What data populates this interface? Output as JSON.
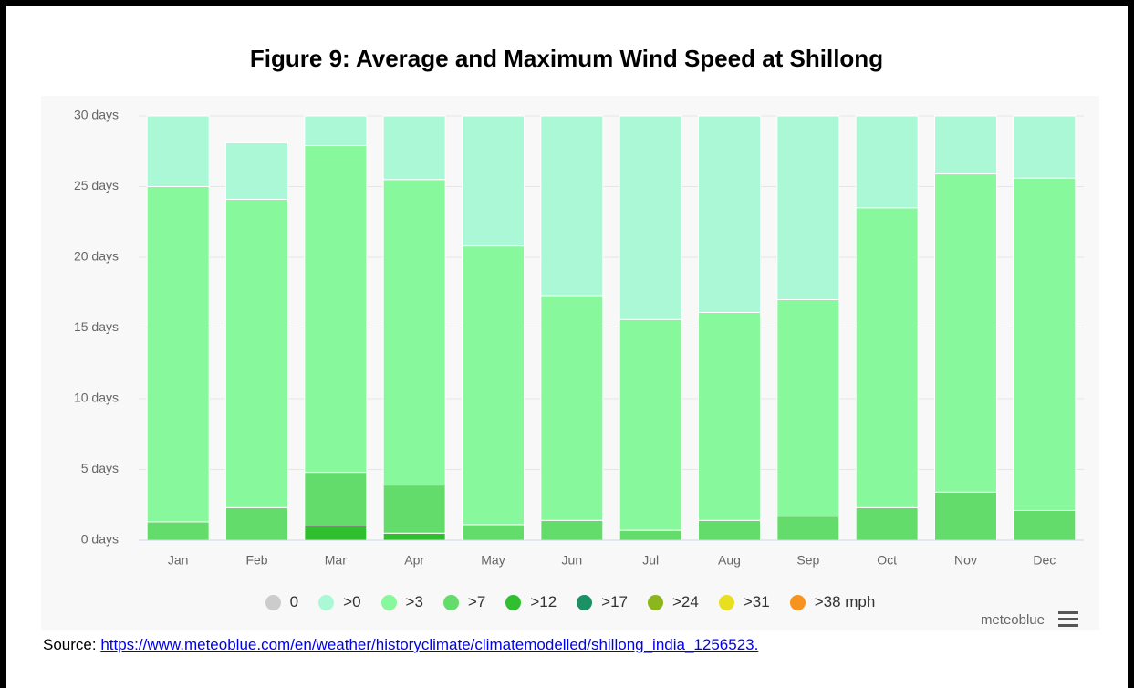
{
  "chart_data": {
    "type": "stacked_bar",
    "title": "Figure 9: Average and Maximum Wind Speed at Shillong",
    "categories": [
      "Jan",
      "Feb",
      "Mar",
      "Apr",
      "May",
      "Jun",
      "Jul",
      "Aug",
      "Sep",
      "Oct",
      "Nov",
      "Dec"
    ],
    "series": [
      {
        "name": "0",
        "color": "#cccccc",
        "values": [
          0,
          0,
          0,
          0,
          0,
          0,
          0,
          0,
          0,
          0,
          0,
          0
        ]
      },
      {
        "name": ">12",
        "color": "#2fbf2f",
        "values": [
          0,
          0,
          1.0,
          0.5,
          0,
          0,
          0,
          0,
          0,
          0,
          0,
          0
        ]
      },
      {
        "name": ">7",
        "color": "#64dc6c",
        "values": [
          1.3,
          2.3,
          3.8,
          3.4,
          1.1,
          1.4,
          0.7,
          1.4,
          1.7,
          2.3,
          3.4,
          2.1
        ]
      },
      {
        "name": ">3",
        "color": "#88f89c",
        "values": [
          23.7,
          21.8,
          23.1,
          21.6,
          19.7,
          15.9,
          14.9,
          14.7,
          15.3,
          21.2,
          22.5,
          23.5
        ]
      },
      {
        "name": ">0",
        "color": "#aaf8d6",
        "values": [
          5.0,
          4.0,
          2.1,
          4.5,
          9.2,
          12.7,
          14.4,
          13.9,
          13.0,
          6.5,
          4.1,
          4.4
        ]
      },
      {
        "name": ">17",
        "color": "#1a9263",
        "values": [
          0,
          0,
          0,
          0,
          0,
          0,
          0,
          0,
          0,
          0,
          0,
          0
        ]
      },
      {
        "name": ">24",
        "color": "#8db51c",
        "values": [
          0,
          0,
          0,
          0,
          0,
          0,
          0,
          0,
          0,
          0,
          0,
          0
        ]
      },
      {
        "name": ">31",
        "color": "#e8e01e",
        "values": [
          0,
          0,
          0,
          0,
          0,
          0,
          0,
          0,
          0,
          0,
          0,
          0
        ]
      },
      {
        "name": ">38 mph",
        "color": "#f7941d",
        "values": [
          0,
          0,
          0,
          0,
          0,
          0,
          0,
          0,
          0,
          0,
          0,
          0
        ]
      }
    ],
    "legend_order": [
      0,
      4,
      3,
      2,
      1,
      5,
      6,
      7,
      8
    ],
    "ylim": [
      0,
      30
    ],
    "yticks": [
      {
        "value": 0,
        "label": "0 days"
      },
      {
        "value": 5,
        "label": "5 days"
      },
      {
        "value": 10,
        "label": "10 days"
      },
      {
        "value": 15,
        "label": "15 days"
      },
      {
        "value": 20,
        "label": "20 days"
      },
      {
        "value": 25,
        "label": "25 days"
      },
      {
        "value": 30,
        "label": "30 days"
      }
    ],
    "grid": true,
    "credit": "meteoblue"
  },
  "source": {
    "label": "Source:",
    "url": "https://www.meteoblue.com/en/weather/historyclimate/climatemodelled/shillong_india_1256523."
  }
}
